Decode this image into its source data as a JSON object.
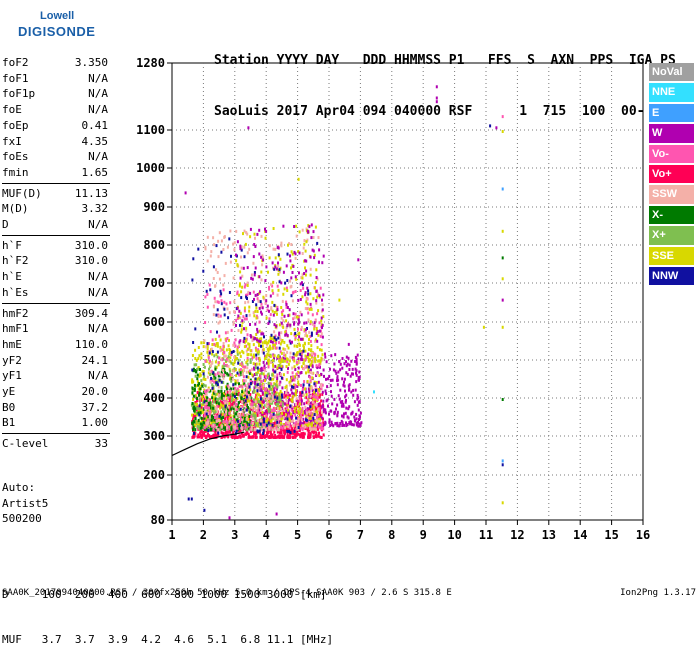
{
  "logo": {
    "line1": "Lowell",
    "line2": "DIGISONDE"
  },
  "header": {
    "line1": "Station YYYY DAY   DDD HHMMSS P1   FFS  S  AXN  PPS  IGA PS",
    "line2": "SaoLuis 2017 Apr04 094 040000 RSF      1  715  100  00-  11"
  },
  "params_group1": [
    {
      "k": "foF2",
      "v": "3.350"
    },
    {
      "k": "foF1",
      "v": "N/A"
    },
    {
      "k": "foF1p",
      "v": "N/A"
    },
    {
      "k": "foE",
      "v": "N/A"
    },
    {
      "k": "foEp",
      "v": "0.41"
    },
    {
      "k": "fxI",
      "v": "4.35"
    },
    {
      "k": "foEs",
      "v": "N/A"
    },
    {
      "k": "fmin",
      "v": "1.65"
    }
  ],
  "params_group2": [
    {
      "k": "MUF(D)",
      "v": "11.13"
    },
    {
      "k": "M(D)",
      "v": "3.32"
    },
    {
      "k": "D",
      "v": "N/A"
    }
  ],
  "params_group3": [
    {
      "k": "h`F",
      "v": "310.0"
    },
    {
      "k": "h`F2",
      "v": "310.0"
    },
    {
      "k": "h`E",
      "v": "N/A"
    },
    {
      "k": "h`Es",
      "v": "N/A"
    }
  ],
  "params_group4": [
    {
      "k": "hmF2",
      "v": "309.4"
    },
    {
      "k": "hmF1",
      "v": "N/A"
    },
    {
      "k": "hmE",
      "v": "110.0"
    },
    {
      "k": "yF2",
      "v": "24.1"
    },
    {
      "k": "yF1",
      "v": "N/A"
    },
    {
      "k": "yE",
      "v": "20.0"
    },
    {
      "k": "B0",
      "v": "37.2"
    },
    {
      "k": "B1",
      "v": "1.00"
    }
  ],
  "params_group5": [
    {
      "k": "C-level",
      "v": "33"
    }
  ],
  "auto": {
    "line1": "Auto:",
    "line2": "Artist5",
    "line3": "500200"
  },
  "legend": [
    {
      "label": "NoVal",
      "color": "#a0a0a0"
    },
    {
      "label": "NNE",
      "color": "#33e0ff"
    },
    {
      "label": "E",
      "color": "#3fa0ff"
    },
    {
      "label": "W",
      "color": "#b000b0"
    },
    {
      "label": "Vo-",
      "color": "#ff55b0"
    },
    {
      "label": "Vo+",
      "color": "#ff0055"
    },
    {
      "label": "SSW",
      "color": "#f4b0a8"
    },
    {
      "label": "X-",
      "color": "#007a00"
    },
    {
      "label": "X+",
      "color": "#7fbf50"
    },
    {
      "label": "SSE",
      "color": "#d8d800"
    },
    {
      "label": "NNW",
      "color": "#1010a0"
    }
  ],
  "bottom": {
    "line1": "D     100  200  400  600  800 1000 1500 3000 [km]",
    "line2": "MUF   3.7  3.7  3.9  4.2  4.6  5.1  6.8 11.1 [MHz]"
  },
  "footer": "SAA0K_2017094040000.RSF / 300fx256h 50 kHz 5.0 km / DPS-4 SAA0K 903 / 2.6 S 315.8 E",
  "version": "Ion2Png 1.3.17",
  "chart_data": {
    "type": "scatter",
    "xlim": [
      1,
      16
    ],
    "ylim": [
      80,
      1280
    ],
    "x_ticks": [
      1,
      2,
      3,
      4,
      5,
      6,
      7,
      8,
      9,
      10,
      11,
      12,
      13,
      14,
      15,
      16
    ],
    "y_ticks": [
      80,
      200,
      300,
      400,
      500,
      600,
      700,
      800,
      900,
      1000,
      1100,
      1280
    ],
    "grid": true,
    "trace_curve": [
      [
        1.0,
        250
      ],
      [
        1.4,
        265
      ],
      [
        1.8,
        280
      ],
      [
        2.2,
        292
      ],
      [
        2.6,
        300
      ],
      [
        3.0,
        305
      ],
      [
        3.3,
        310
      ]
    ],
    "echo_regions": [
      {
        "color": "#ff0055",
        "xmin": 1.6,
        "xmax": 5.8,
        "ymin": 300,
        "ymax": 420,
        "n": 900
      },
      {
        "color": "#b000b0",
        "xmin": 3.5,
        "xmax": 7.0,
        "ymin": 330,
        "ymax": 520,
        "n": 500
      },
      {
        "color": "#d8d800",
        "xmin": 1.6,
        "xmax": 5.7,
        "ymin": 330,
        "ymax": 560,
        "n": 650
      },
      {
        "color": "#7fbf50",
        "xmin": 1.6,
        "xmax": 4.5,
        "ymin": 320,
        "ymax": 520,
        "n": 300
      },
      {
        "color": "#007a00",
        "xmin": 1.6,
        "xmax": 3.5,
        "ymin": 320,
        "ymax": 480,
        "n": 220
      },
      {
        "color": "#ff55b0",
        "xmin": 2.0,
        "xmax": 5.8,
        "ymin": 320,
        "ymax": 700,
        "n": 400
      },
      {
        "color": "#f4b0a8",
        "xmin": 2.0,
        "xmax": 5.8,
        "ymin": 320,
        "ymax": 850,
        "n": 380
      },
      {
        "color": "#d8d800",
        "xmin": 3.0,
        "xmax": 5.8,
        "ymin": 500,
        "ymax": 860,
        "n": 220
      },
      {
        "color": "#1010a0",
        "xmin": 1.6,
        "xmax": 5.6,
        "ymin": 310,
        "ymax": 820,
        "n": 160
      },
      {
        "color": "#b000b0",
        "xmin": 3.0,
        "xmax": 5.8,
        "ymin": 550,
        "ymax": 860,
        "n": 160
      }
    ],
    "scattered_points": [
      {
        "x": 1.4,
        "y": 940,
        "color": "#b000b0"
      },
      {
        "x": 3.4,
        "y": 1110,
        "color": "#b000b0"
      },
      {
        "x": 5.0,
        "y": 975,
        "color": "#d8d800"
      },
      {
        "x": 9.4,
        "y": 1220,
        "color": "#b000b0"
      },
      {
        "x": 9.4,
        "y": 1190,
        "color": "#b000b0"
      },
      {
        "x": 9.4,
        "y": 1180,
        "color": "#b000b0"
      },
      {
        "x": 11.1,
        "y": 1115,
        "color": "#1010a0"
      },
      {
        "x": 11.3,
        "y": 1110,
        "color": "#b000b0"
      },
      {
        "x": 11.5,
        "y": 1140,
        "color": "#ff55b0"
      },
      {
        "x": 11.5,
        "y": 1100,
        "color": "#d8d800"
      },
      {
        "x": 11.5,
        "y": 950,
        "color": "#3fa0ff"
      },
      {
        "x": 11.5,
        "y": 840,
        "color": "#d8d800"
      },
      {
        "x": 11.5,
        "y": 770,
        "color": "#007a00"
      },
      {
        "x": 11.5,
        "y": 715,
        "color": "#d8d800"
      },
      {
        "x": 11.5,
        "y": 660,
        "color": "#b000b0"
      },
      {
        "x": 11.5,
        "y": 590,
        "color": "#d8d800"
      },
      {
        "x": 11.5,
        "y": 400,
        "color": "#007a00"
      },
      {
        "x": 11.5,
        "y": 240,
        "color": "#3fa0ff"
      },
      {
        "x": 11.5,
        "y": 230,
        "color": "#1010a0"
      },
      {
        "x": 11.5,
        "y": 130,
        "color": "#d8d800"
      },
      {
        "x": 10.9,
        "y": 590,
        "color": "#d8d800"
      },
      {
        "x": 6.9,
        "y": 765,
        "color": "#b000b0"
      },
      {
        "x": 7.4,
        "y": 420,
        "color": "#33e0ff"
      },
      {
        "x": 1.5,
        "y": 140,
        "color": "#1010a0"
      },
      {
        "x": 1.6,
        "y": 140,
        "color": "#1010a0"
      },
      {
        "x": 2.0,
        "y": 110,
        "color": "#1010a0"
      },
      {
        "x": 2.8,
        "y": 90,
        "color": "#b000b0"
      },
      {
        "x": 4.3,
        "y": 100,
        "color": "#b000b0"
      },
      {
        "x": 6.6,
        "y": 545,
        "color": "#b000b0"
      },
      {
        "x": 6.8,
        "y": 500,
        "color": "#b000b0"
      },
      {
        "x": 6.3,
        "y": 660,
        "color": "#d8d800"
      }
    ]
  }
}
